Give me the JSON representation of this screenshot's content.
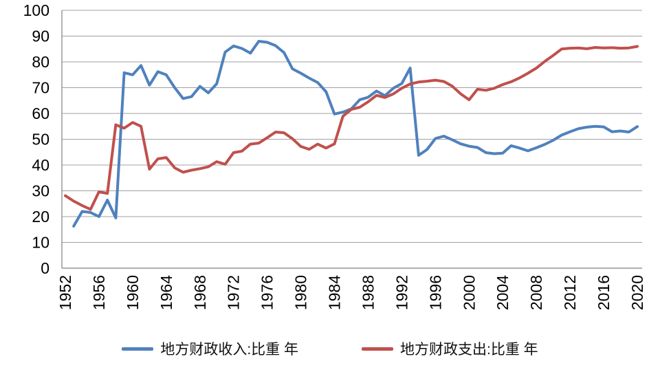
{
  "chart_data": {
    "type": "line",
    "title": "",
    "xlabel": "",
    "ylabel": "",
    "x": [
      1952,
      1953,
      1954,
      1955,
      1956,
      1957,
      1958,
      1959,
      1960,
      1961,
      1962,
      1963,
      1964,
      1965,
      1966,
      1967,
      1968,
      1969,
      1970,
      1971,
      1972,
      1973,
      1974,
      1975,
      1976,
      1977,
      1978,
      1979,
      1980,
      1981,
      1982,
      1983,
      1984,
      1985,
      1986,
      1987,
      1988,
      1989,
      1990,
      1991,
      1992,
      1993,
      1994,
      1995,
      1996,
      1997,
      1998,
      1999,
      2000,
      2001,
      2002,
      2003,
      2004,
      2005,
      2006,
      2007,
      2008,
      2009,
      2010,
      2011,
      2012,
      2013,
      2014,
      2015,
      2016,
      2017,
      2018,
      2019,
      2020
    ],
    "x_tick_labels": [
      "1952",
      "1956",
      "1960",
      "1964",
      "1968",
      "1972",
      "1976",
      "1980",
      "1984",
      "1988",
      "1992",
      "1996",
      "2000",
      "2004",
      "2008",
      "2012",
      "2016",
      "2020"
    ],
    "x_label_step": 4,
    "y_ticks": [
      0,
      10,
      20,
      30,
      40,
      50,
      60,
      70,
      80,
      90,
      100
    ],
    "ylim": [
      0,
      100
    ],
    "grid": "horizontal",
    "legend_position": "bottom",
    "series": [
      {
        "key": "local-revenue-share",
        "name": "地方财政收入:比重 年",
        "color": "#4F81BD",
        "values": [
          null,
          16.3,
          22,
          21.6,
          20,
          26.4,
          19.5,
          75.8,
          75,
          78.6,
          71,
          76.2,
          75,
          70,
          65.8,
          66.5,
          70.5,
          68,
          71.5,
          83.8,
          86.2,
          85.2,
          83.4,
          88,
          87.6,
          86.3,
          83.6,
          77.3,
          75.6,
          73.7,
          72,
          68.4,
          59.8,
          60.5,
          61.8,
          65.3,
          66.3,
          68.7,
          66.9,
          69.8,
          71.6,
          77.6,
          43.8,
          46,
          50.3,
          51.2,
          49.8,
          48.2,
          47.3,
          46.8,
          44.8,
          44.4,
          44.6,
          47.5,
          46.6,
          45.5,
          46.7,
          48,
          49.6,
          51.6,
          52.9,
          54.1,
          54.7,
          55,
          54.8,
          52.9,
          53.2,
          52.8,
          54.9
        ]
      },
      {
        "key": "local-expenditure-share",
        "name": "地方财政支出:比重 年",
        "color": "#C0504D",
        "values": [
          28.1,
          26,
          24.3,
          22.8,
          29.6,
          29,
          55.6,
          54.3,
          56.5,
          55,
          38.4,
          42.4,
          42.9,
          38.9,
          37.2,
          38,
          38.6,
          39.3,
          41.3,
          40.3,
          44.8,
          45.4,
          48.1,
          48.5,
          50.6,
          52.8,
          52.5,
          50.2,
          47.2,
          46.1,
          48.1,
          46.6,
          48.2,
          58.9,
          61.6,
          62.4,
          64.5,
          67,
          66.2,
          67.6,
          69.8,
          71.4,
          72.2,
          72.5,
          72.9,
          72.4,
          70.6,
          67.6,
          65.3,
          69.4,
          69,
          69.8,
          71.2,
          72.3,
          73.8,
          75.6,
          77.6,
          80.2,
          82.5,
          85,
          85.3,
          85.4,
          85.1,
          85.6,
          85.4,
          85.5,
          85.3,
          85.4,
          86
        ]
      }
    ]
  },
  "colors": {
    "background": "#FFFFFF",
    "gridline": "#A0A0A0",
    "axis_line": "#808080",
    "tick_text": "#000000"
  }
}
